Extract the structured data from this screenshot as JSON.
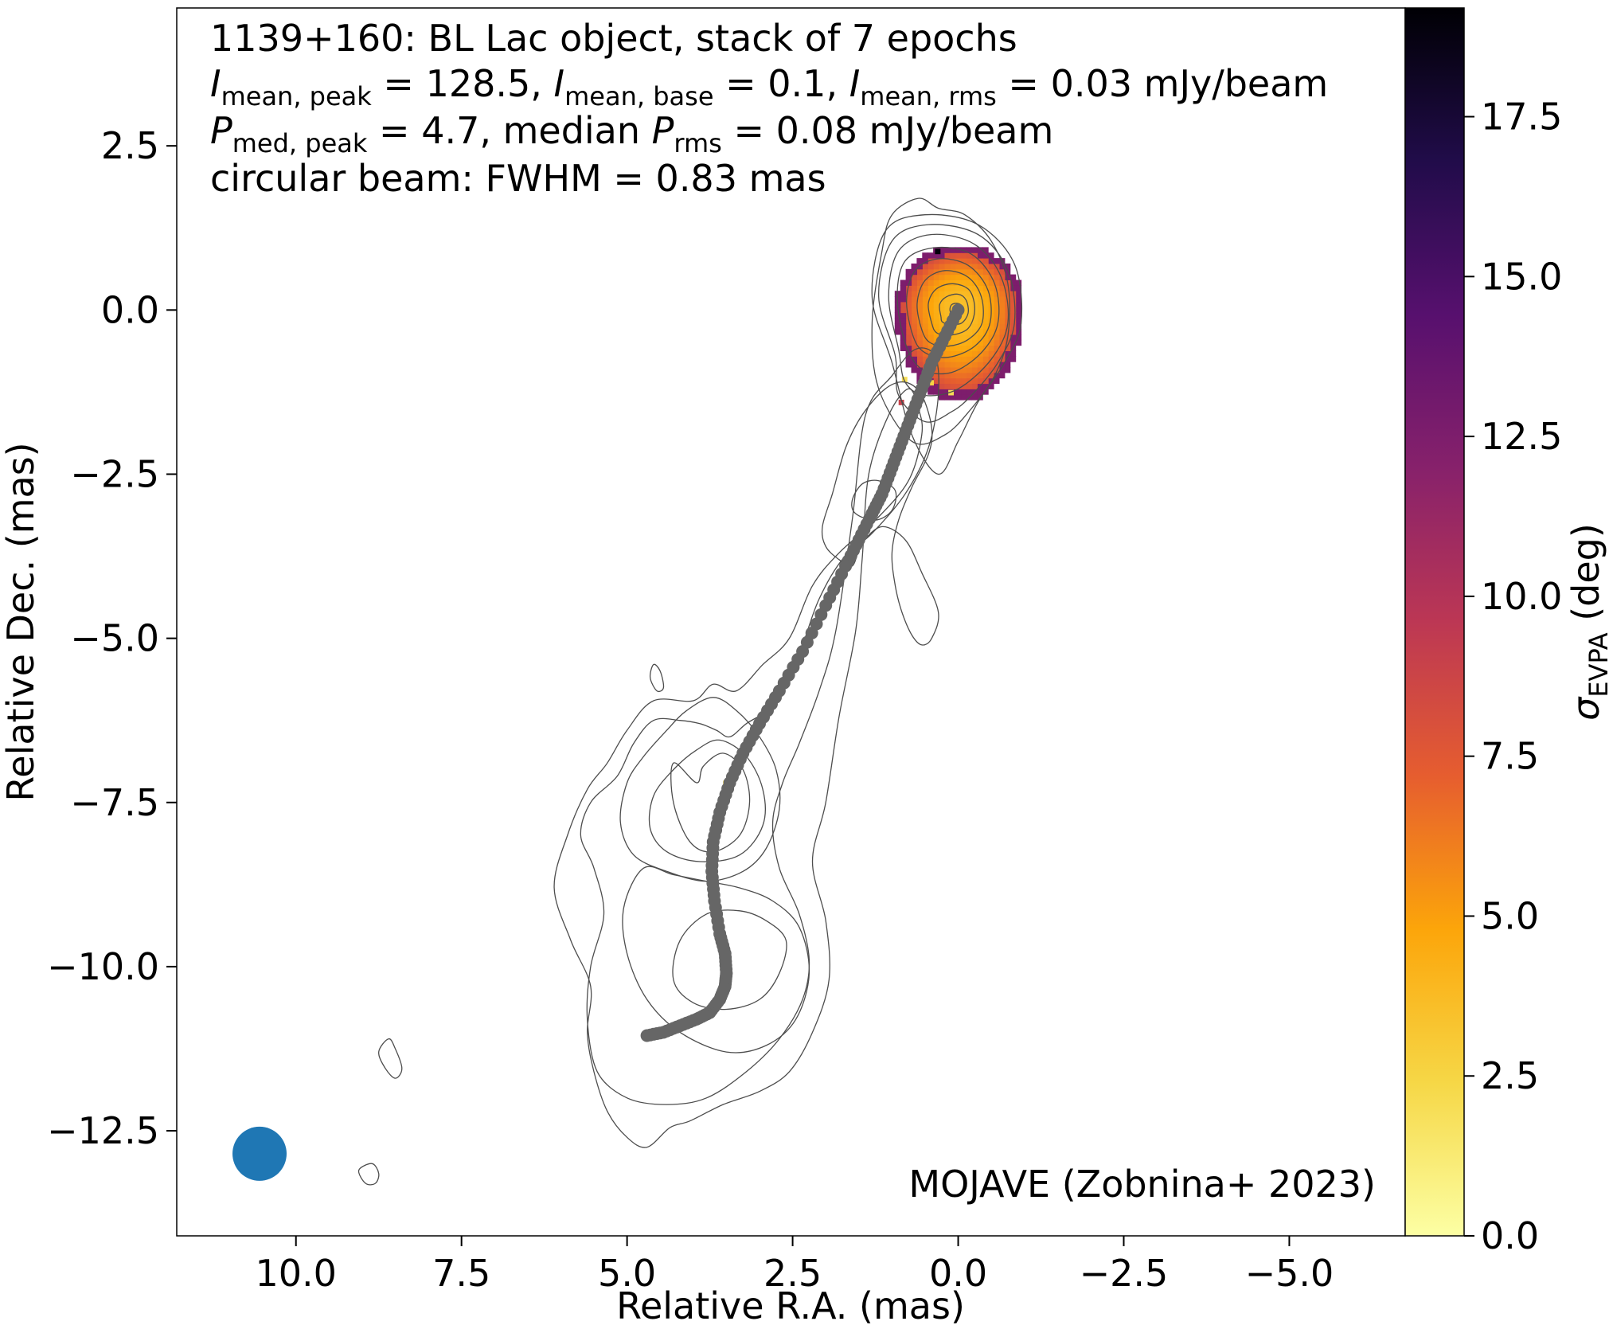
{
  "chart_data": {
    "type": "scatter",
    "title_lines": [
      "1139+160: BL Lac object, stack of 7 epochs",
      "I_mean,peak = 128.5, I_mean,base = 0.1, I_mean,rms = 0.03 mJy/beam",
      "P_med,peak = 4.7, median P_rms = 0.08 mJy/beam",
      "circular beam: FWHM = 0.83 mas"
    ],
    "annotation": {
      "line1": "1139+160: BL Lac object, stack of 7 epochs",
      "line2": {
        "I": "I",
        "sub_peak": "mean, peak",
        "eq_peak": " = 128.5, ",
        "sub_base": "mean, base",
        "eq_base": " = 0.1, ",
        "sub_rms": "mean, rms",
        "eq_rms": " = 0.03 mJy/beam"
      },
      "line3": {
        "P": "P",
        "sub_peak": "med, peak",
        "eq_peak": " = 4.7, median ",
        "sub_rms": "rms",
        "eq_rms": " = 0.08 mJy/beam"
      },
      "line4": "circular beam: FWHM = 0.83 mas"
    },
    "credit": "MOJAVE (Zobnina+ 2023)",
    "xlabel": "Relative R.A. (mas)",
    "ylabel": "Relative Dec. (mas)",
    "xlim": [
      11.8,
      -6.75
    ],
    "ylim": [
      -14.1,
      4.6
    ],
    "x_ticks": [
      "10.0",
      "7.5",
      "5.0",
      "2.5",
      "0.0",
      "−2.5",
      "−5.0"
    ],
    "x_tick_values": [
      10.0,
      7.5,
      5.0,
      2.5,
      0.0,
      -2.5,
      -5.0
    ],
    "y_ticks": [
      "2.5",
      "0.0",
      "−2.5",
      "−5.0",
      "−7.5",
      "−10.0",
      "−12.5"
    ],
    "y_tick_values": [
      2.5,
      0.0,
      -2.5,
      -5.0,
      -7.5,
      -10.0,
      -12.5
    ],
    "colorbar": {
      "label_symbol": "σ",
      "label_sub": "EVPA",
      "label_unit": " (deg)",
      "range": [
        0,
        19.2
      ],
      "ticks": [
        "0.0",
        "2.5",
        "5.0",
        "7.5",
        "10.0",
        "12.5",
        "15.0",
        "17.5"
      ],
      "tick_values": [
        0.0,
        2.5,
        5.0,
        7.5,
        10.0,
        12.5,
        15.0,
        17.5
      ],
      "colormap": "inferno_r",
      "stops": [
        "#fcffa4",
        "#f6d746",
        "#fca50a",
        "#e65d2f",
        "#bc3754",
        "#87216b",
        "#57106e",
        "#210c4a",
        "#000004"
      ]
    },
    "beam": {
      "x": 10.55,
      "y": -12.85,
      "fwhm": 0.83,
      "color": "#1f77b4"
    },
    "ridgeline": {
      "color": "#666666",
      "x": [
        0.0,
        0.2,
        0.4,
        0.55,
        0.7,
        0.85,
        1.0,
        1.15,
        1.3,
        1.5,
        1.7,
        2.0,
        2.35,
        2.7,
        3.0,
        3.25,
        3.45,
        3.6,
        3.7,
        3.72,
        3.68,
        3.6,
        3.52,
        3.5,
        3.52,
        3.6,
        3.75,
        3.95,
        4.2,
        4.45,
        4.7
      ],
      "y": [
        0.0,
        -0.4,
        -0.8,
        -1.2,
        -1.6,
        -2.0,
        -2.4,
        -2.8,
        -3.1,
        -3.5,
        -3.9,
        -4.5,
        -5.2,
        -5.8,
        -6.3,
        -6.75,
        -7.2,
        -7.65,
        -8.1,
        -8.55,
        -9.0,
        -9.5,
        -9.8,
        -10.1,
        -10.3,
        -10.5,
        -10.7,
        -10.8,
        -10.9,
        -11.0,
        -11.05
      ]
    },
    "contours_ra_dec": [
      {
        "x": [
          1.0,
          1.3,
          1.1,
          0.5,
          -0.3,
          -0.85,
          -0.95,
          -0.7,
          -0.3,
          0.0,
          0.3,
          0.7,
          1.0
        ],
        "y": [
          -0.8,
          0.2,
          1.2,
          1.45,
          1.3,
          0.7,
          -0.2,
          -0.8,
          -1.4,
          -2.0,
          -2.5,
          -1.9,
          -0.8
        ]
      },
      {
        "x": [
          0.95,
          1.2,
          1.0,
          0.45,
          -0.3,
          -0.75,
          -0.85,
          -0.6,
          -0.2,
          0.1,
          0.5,
          0.9,
          0.95
        ],
        "y": [
          -0.7,
          0.2,
          1.05,
          1.3,
          1.15,
          0.6,
          -0.2,
          -0.8,
          -1.3,
          -1.55,
          -1.7,
          -1.3,
          -0.7
        ]
      },
      {
        "x": [
          0.9,
          1.05,
          0.9,
          0.4,
          -0.25,
          -0.65,
          -0.75,
          -0.5,
          0.0,
          0.5,
          0.8,
          0.9
        ],
        "y": [
          -0.6,
          0.2,
          0.9,
          1.15,
          1.0,
          0.5,
          -0.2,
          -0.75,
          -1.2,
          -1.3,
          -1.1,
          -0.6
        ]
      },
      {
        "x": [
          0.8,
          0.92,
          0.8,
          0.35,
          -0.2,
          -0.55,
          -0.6,
          -0.35,
          0.1,
          0.55,
          0.8
        ],
        "y": [
          -0.5,
          0.2,
          0.75,
          0.95,
          0.85,
          0.4,
          -0.2,
          -0.65,
          -0.95,
          -0.9,
          -0.5
        ]
      },
      {
        "x": [
          0.68,
          0.78,
          0.65,
          0.3,
          -0.15,
          -0.45,
          -0.48,
          -0.25,
          0.15,
          0.5,
          0.68
        ],
        "y": [
          -0.4,
          0.15,
          0.6,
          0.78,
          0.68,
          0.3,
          -0.2,
          -0.55,
          -0.72,
          -0.65,
          -0.4
        ]
      },
      {
        "x": [
          0.55,
          0.62,
          0.5,
          0.2,
          -0.15,
          -0.35,
          -0.36,
          -0.15,
          0.15,
          0.42,
          0.55
        ],
        "y": [
          -0.3,
          0.1,
          0.45,
          0.6,
          0.5,
          0.2,
          -0.2,
          -0.45,
          -0.55,
          -0.5,
          -0.3
        ]
      },
      {
        "x": [
          0.4,
          0.45,
          0.33,
          0.08,
          -0.17,
          -0.25,
          -0.15,
          0.1,
          0.32,
          0.4
        ],
        "y": [
          -0.2,
          0.1,
          0.32,
          0.4,
          0.3,
          0.0,
          -0.28,
          -0.38,
          -0.35,
          -0.2
        ]
      },
      {
        "x": [
          0.26,
          0.28,
          0.18,
          0.0,
          -0.12,
          -0.15,
          -0.05,
          0.12,
          0.24,
          0.26
        ],
        "y": [
          -0.1,
          0.08,
          0.2,
          0.24,
          0.15,
          -0.05,
          -0.2,
          -0.22,
          -0.18,
          -0.1
        ]
      },
      {
        "x": [
          0.12,
          0.1,
          0.0,
          -0.07,
          -0.06,
          0.04,
          0.12
        ],
        "y": [
          -0.02,
          0.08,
          0.1,
          0.04,
          -0.06,
          -0.1,
          -0.02
        ]
      },
      {
        "x": [
          1.6,
          1.45,
          1.2,
          0.95,
          1.0,
          1.25,
          1.55,
          1.6
        ],
        "y": [
          -2.9,
          -2.65,
          -2.6,
          -2.75,
          -3.05,
          -3.2,
          -3.1,
          -2.9
        ]
      },
      {
        "x": [
          2.05,
          1.9,
          1.7,
          1.45,
          1.1,
          0.8,
          0.55,
          0.4,
          0.45,
          0.7,
          0.9,
          1.0,
          0.95,
          0.85,
          0.7,
          0.55,
          0.4,
          0.3,
          0.55,
          0.8,
          1.15,
          1.45,
          1.6,
          1.8,
          2.0,
          2.05
        ],
        "y": [
          -3.3,
          -2.8,
          -2.1,
          -1.6,
          -1.2,
          -1.1,
          -1.3,
          -1.8,
          -2.2,
          -2.7,
          -3.2,
          -3.7,
          -4.2,
          -4.6,
          -4.95,
          -5.1,
          -5.0,
          -4.6,
          -4.0,
          -3.5,
          -3.3,
          -3.55,
          -3.9,
          -3.8,
          -3.6,
          -3.3
        ]
      },
      {
        "x": [
          3.95,
          4.3,
          4.3,
          4.05,
          3.7,
          3.3,
          3.15,
          3.25,
          3.55,
          3.85,
          3.95
        ],
        "y": [
          -7.2,
          -6.9,
          -7.5,
          -8.1,
          -8.25,
          -8.0,
          -7.5,
          -7.0,
          -6.75,
          -6.95,
          -7.2
        ]
      },
      {
        "x": [
          4.3,
          4.6,
          4.65,
          4.4,
          3.9,
          3.3,
          2.95,
          2.95,
          3.2,
          3.6,
          3.95,
          4.3
        ],
        "y": [
          -7.0,
          -7.4,
          -7.9,
          -8.25,
          -8.4,
          -8.3,
          -7.85,
          -7.3,
          -6.8,
          -6.55,
          -6.7,
          -7.0
        ]
      },
      {
        "x": [
          4.75,
          5.0,
          5.1,
          4.9,
          4.4,
          3.8,
          3.25,
          2.9,
          2.7,
          2.75,
          3.0,
          3.35,
          3.7,
          4.1,
          4.4,
          4.75
        ],
        "y": [
          -6.8,
          -7.2,
          -7.8,
          -8.3,
          -8.55,
          -8.7,
          -8.55,
          -8.2,
          -7.6,
          -7.0,
          -6.5,
          -6.1,
          -5.9,
          -6.1,
          -6.4,
          -6.8
        ]
      },
      {
        "x": [
          3.8,
          4.2,
          4.3,
          4.0,
          3.5,
          3.0,
          2.7,
          2.6,
          2.9,
          3.3,
          3.8
        ],
        "y": [
          -9.2,
          -9.6,
          -10.2,
          -10.55,
          -10.65,
          -10.5,
          -10.1,
          -9.6,
          -9.3,
          -9.15,
          -9.2
        ]
      },
      {
        "x": [
          4.75,
          5.05,
          5.0,
          4.7,
          4.2,
          3.5,
          2.9,
          2.45,
          2.25,
          2.4,
          2.8,
          3.3,
          3.8,
          4.3,
          4.75
        ],
        "y": [
          -8.5,
          -9.1,
          -9.8,
          -10.5,
          -11.0,
          -11.3,
          -11.2,
          -10.8,
          -10.1,
          -9.4,
          -9.0,
          -8.8,
          -8.7,
          -8.6,
          -8.5
        ]
      },
      {
        "x": [
          1.4,
          1.0,
          0.65,
          0.35,
          0.3,
          0.45,
          0.8,
          1.3,
          1.75,
          2.1,
          2.35,
          2.6,
          2.9,
          3.2,
          3.45,
          3.65,
          3.9,
          4.2,
          4.6,
          4.9,
          5.15,
          5.55,
          5.7,
          5.5,
          5.35,
          5.55,
          5.6,
          5.45,
          5.0,
          4.4,
          3.8,
          3.2,
          2.7,
          2.35,
          2.25,
          2.4,
          2.7,
          2.8,
          2.65,
          2.4,
          2.1,
          1.85,
          1.6,
          1.4
        ],
        "y": [
          -1.6,
          -1.0,
          -0.6,
          -0.7,
          -1.3,
          -2.1,
          -2.8,
          -3.4,
          -3.8,
          -4.4,
          -5.1,
          -5.7,
          -6.1,
          -6.3,
          -6.5,
          -6.4,
          -6.3,
          -6.25,
          -6.25,
          -6.6,
          -7.1,
          -7.5,
          -8.0,
          -8.5,
          -9.2,
          -10.0,
          -10.8,
          -11.6,
          -12.0,
          -12.1,
          -12.0,
          -11.6,
          -11.1,
          -10.5,
          -9.9,
          -9.2,
          -8.5,
          -7.8,
          -7.2,
          -6.6,
          -5.8,
          -4.9,
          -3.2,
          -1.6
        ]
      },
      {
        "x": [
          0.7,
          1.2,
          1.3,
          1.15,
          1.0,
          0.6,
          0.3,
          -0.1,
          -0.5,
          -0.75,
          -0.75,
          -0.55,
          -0.2,
          0.2,
          0.7
        ],
        "y": [
          -2.0,
          -1.2,
          -0.2,
          0.9,
          1.45,
          1.7,
          1.55,
          1.45,
          1.05,
          0.4,
          -0.4,
          -1.0,
          -1.5,
          -1.9,
          -2.0
        ]
      },
      {
        "x": [
          1.35,
          1.05,
          0.75,
          0.6,
          0.55,
          0.75,
          1.25,
          1.8,
          2.2,
          2.55,
          2.95,
          3.35,
          3.7,
          4.0,
          4.6,
          5.0,
          5.3,
          5.6,
          5.9,
          6.1,
          5.85,
          5.55,
          5.6,
          5.5,
          5.3,
          5.0,
          4.7,
          4.35,
          4.05,
          3.55,
          3.0,
          2.55,
          2.2,
          1.95,
          2.0,
          2.2,
          2.0,
          1.8,
          1.55,
          1.45,
          1.35
        ],
        "y": [
          -2.5,
          -1.6,
          -1.2,
          -1.5,
          -1.9,
          -2.6,
          -3.2,
          -3.7,
          -4.2,
          -5.0,
          -5.4,
          -5.8,
          -5.7,
          -5.95,
          -5.95,
          -6.4,
          -6.9,
          -7.3,
          -8.0,
          -8.8,
          -9.6,
          -10.3,
          -11.0,
          -11.6,
          -12.2,
          -12.6,
          -12.75,
          -12.45,
          -12.35,
          -12.1,
          -11.9,
          -11.6,
          -11.0,
          -10.2,
          -9.3,
          -8.4,
          -7.5,
          -6.2,
          -4.9,
          -3.8,
          -2.5
        ]
      },
      {
        "x": [
          4.6,
          4.5,
          4.45,
          4.55,
          4.65,
          4.6
        ],
        "y": [
          -5.4,
          -5.5,
          -5.75,
          -5.8,
          -5.6,
          -5.4
        ]
      },
      {
        "x": [
          8.6,
          8.5,
          8.4,
          8.5,
          8.65,
          8.75,
          8.6
        ],
        "y": [
          -11.1,
          -11.25,
          -11.55,
          -11.7,
          -11.55,
          -11.3,
          -11.1
        ]
      },
      {
        "x": [
          8.85,
          8.75,
          8.8,
          8.95,
          9.05,
          8.85
        ],
        "y": [
          -13.0,
          -13.15,
          -13.3,
          -13.3,
          -13.1,
          -13.0
        ]
      }
    ],
    "evpa_map": {
      "center": [
        0.0,
        0.0
      ],
      "radius_ra": [
        1.0,
        0.95
      ],
      "radius_dec": [
        0.95,
        1.45
      ],
      "min_value": 3.5,
      "max_value": 9.5,
      "edge_value": 12.5,
      "outliers": [
        {
          "x": 0.35,
          "y": 0.85,
          "value": 19.0
        },
        {
          "x": 0.85,
          "y": -1.1,
          "value": 2.0
        },
        {
          "x": 0.45,
          "y": -1.15,
          "value": 2.5
        },
        {
          "x": 3.55,
          "y": -7.25,
          "value": 2.0
        },
        {
          "x": 0.9,
          "y": -1.45,
          "value": 9.0
        },
        {
          "x": 0.15,
          "y": -1.3,
          "value": 2.0
        }
      ]
    }
  }
}
